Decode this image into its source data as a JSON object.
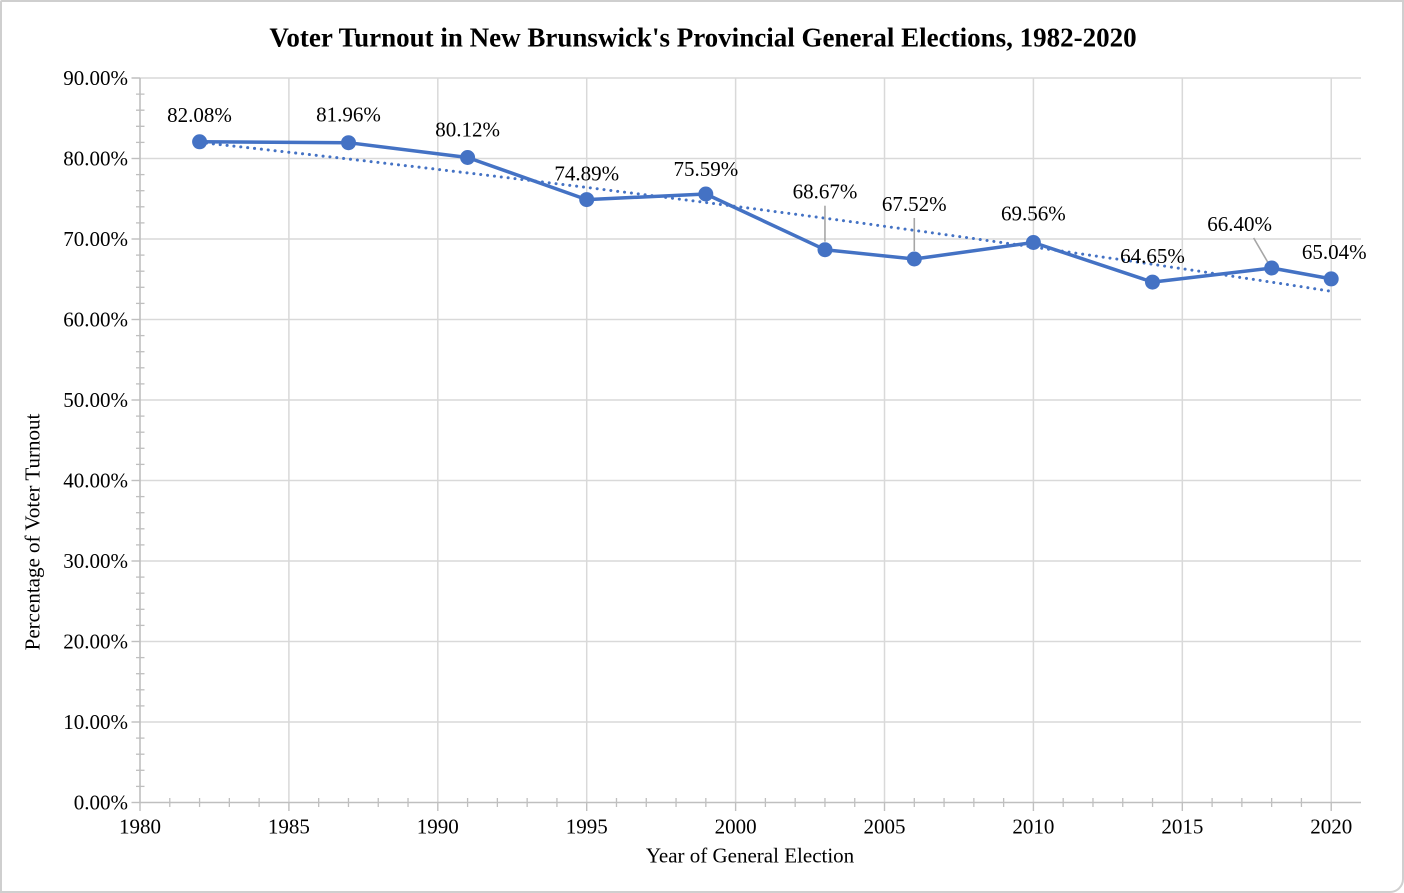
{
  "colors": {
    "series_blue": "#4472C4",
    "gridline": "#D9D9D9",
    "axis_line": "#BFBFBF",
    "leader_line": "#A6A6A6",
    "text": "#000000",
    "background": "#FFFFFF"
  },
  "chart_data": {
    "type": "line",
    "title": "Voter Turnout in New Brunswick's Provincial General Elections, 1982-2020",
    "xlabel": "Year of General Election",
    "ylabel": "Percentage of Voter Turnout",
    "xlim": [
      1980,
      2021
    ],
    "ylim": [
      0,
      90
    ],
    "grid": "major-both",
    "x_tick_years": [
      1980,
      1985,
      1990,
      1995,
      2000,
      2005,
      2010,
      2015,
      2020
    ],
    "x_tick_labels": [
      "1980",
      "1985",
      "1990",
      "1995",
      "2000",
      "2005",
      "2010",
      "2015",
      "2020"
    ],
    "x_minor_step": 1,
    "y_tick_values": [
      0,
      10,
      20,
      30,
      40,
      50,
      60,
      70,
      80,
      90
    ],
    "y_tick_labels": [
      "0.00%",
      "10.00%",
      "20.00%",
      "30.00%",
      "40.00%",
      "50.00%",
      "60.00%",
      "70.00%",
      "80.00%",
      "90.00%"
    ],
    "y_minor_step": 2,
    "legend": "none",
    "series": [
      {
        "name": "Voter Turnout",
        "color": "#4472C4",
        "marker": "circle",
        "points": [
          {
            "year": 1982,
            "value": 82.08,
            "label": "82.08%",
            "label_dx": 0,
            "label_dy": -27,
            "leader": false
          },
          {
            "year": 1987,
            "value": 81.96,
            "label": "81.96%",
            "label_dx": 0,
            "label_dy": -28,
            "leader": false
          },
          {
            "year": 1991,
            "value": 80.12,
            "label": "80.12%",
            "label_dx": 0,
            "label_dy": -28,
            "leader": false
          },
          {
            "year": 1995,
            "value": 74.89,
            "label": "74.89%",
            "label_dx": 0,
            "label_dy": -26,
            "leader": false
          },
          {
            "year": 1999,
            "value": 75.59,
            "label": "75.59%",
            "label_dx": 0,
            "label_dy": -25,
            "leader": false
          },
          {
            "year": 2003,
            "value": 68.67,
            "label": "68.67%",
            "label_dx": 0,
            "label_dy": -58,
            "leader": true
          },
          {
            "year": 2006,
            "value": 67.52,
            "label": "67.52%",
            "label_dx": 0,
            "label_dy": -55,
            "leader": true
          },
          {
            "year": 2010,
            "value": 69.56,
            "label": "69.56%",
            "label_dx": 0,
            "label_dy": -29,
            "leader": false
          },
          {
            "year": 2014,
            "value": 64.65,
            "label": "64.65%",
            "label_dx": 0,
            "label_dy": -26,
            "leader": false
          },
          {
            "year": 2018,
            "value": 66.4,
            "label": "66.40%",
            "label_dx": -32,
            "label_dy": -44,
            "leader": true
          },
          {
            "year": 2020,
            "value": 65.04,
            "label": "65.04%",
            "label_dx": 3,
            "label_dy": -27,
            "leader": false
          }
        ]
      }
    ],
    "trendline": {
      "type": "polynomial",
      "style": "dotted",
      "color": "#4472C4",
      "start_year": 1982,
      "end_year": 2020,
      "start_value": 82.0,
      "end_value": 63.5,
      "coefficients": {
        "a": 82.0,
        "b": -0.4011,
        "c": -0.002256,
        "t0": 1982
      }
    }
  }
}
